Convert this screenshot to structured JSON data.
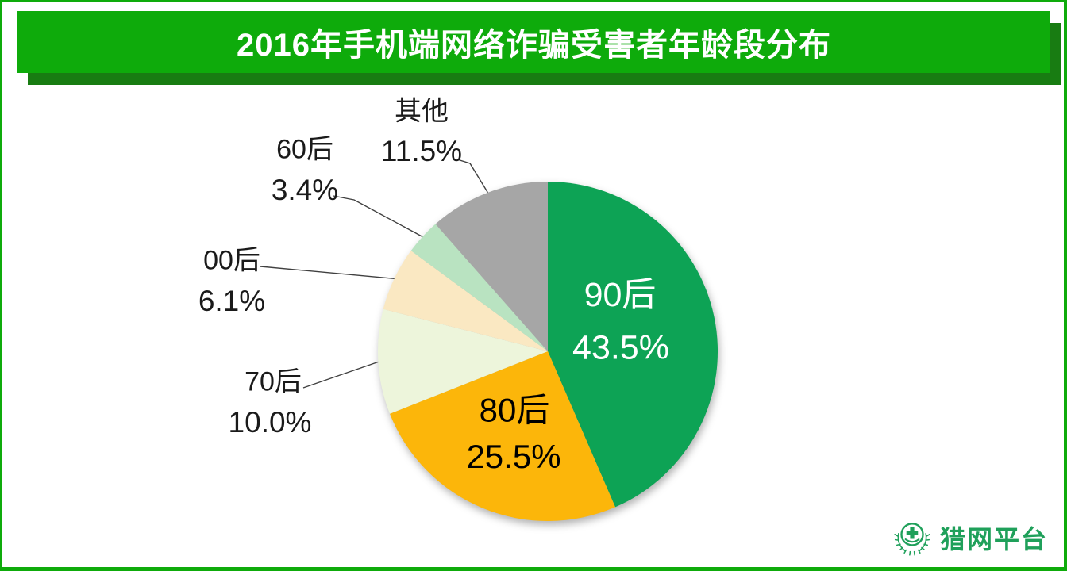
{
  "header": {
    "title": "2016年手机端网络诈骗受害者年龄段分布",
    "banner_color": "#0eab0b",
    "banner_shadow_color": "#187c12",
    "text_color": "#ffffff"
  },
  "page": {
    "background": "#ffffff",
    "frame_color": "#0eab0b"
  },
  "chart_data": {
    "type": "pie",
    "title": "2016年手机端网络诈骗受害者年龄段分布",
    "unit": "percent",
    "start_angle_deg_from_top": 0,
    "direction": "clockwise",
    "legend_position": "none",
    "slices": [
      {
        "key": "post-90s",
        "label": "90后",
        "value": 43.5,
        "display": "43.5%",
        "color": "#0da355",
        "label_color": "#ffffff",
        "label_position": "inside"
      },
      {
        "key": "post-80s",
        "label": "80后",
        "value": 25.5,
        "display": "25.5%",
        "color": "#fcb60a",
        "label_color": "#000000",
        "label_position": "inside"
      },
      {
        "key": "post-70s",
        "label": "70后",
        "value": 10.0,
        "display": "10.0%",
        "color": "#edf5db",
        "label_color": "#1a1a1a",
        "label_position": "outside"
      },
      {
        "key": "post-00s",
        "label": "00后",
        "value": 6.1,
        "display": "6.1%",
        "color": "#fae8c2",
        "label_color": "#1a1a1a",
        "label_position": "outside"
      },
      {
        "key": "post-60s",
        "label": "60后",
        "value": 3.4,
        "display": "3.4%",
        "color": "#b9e3c1",
        "label_color": "#1a1a1a",
        "label_position": "outside"
      },
      {
        "key": "other",
        "label": "其他",
        "value": 11.5,
        "display": "11.5%",
        "color": "#a6a6a6",
        "label_color": "#1a1a1a",
        "label_position": "outside"
      }
    ]
  },
  "footer": {
    "brand": "猎网平台",
    "brand_color": "#1fa05a"
  }
}
